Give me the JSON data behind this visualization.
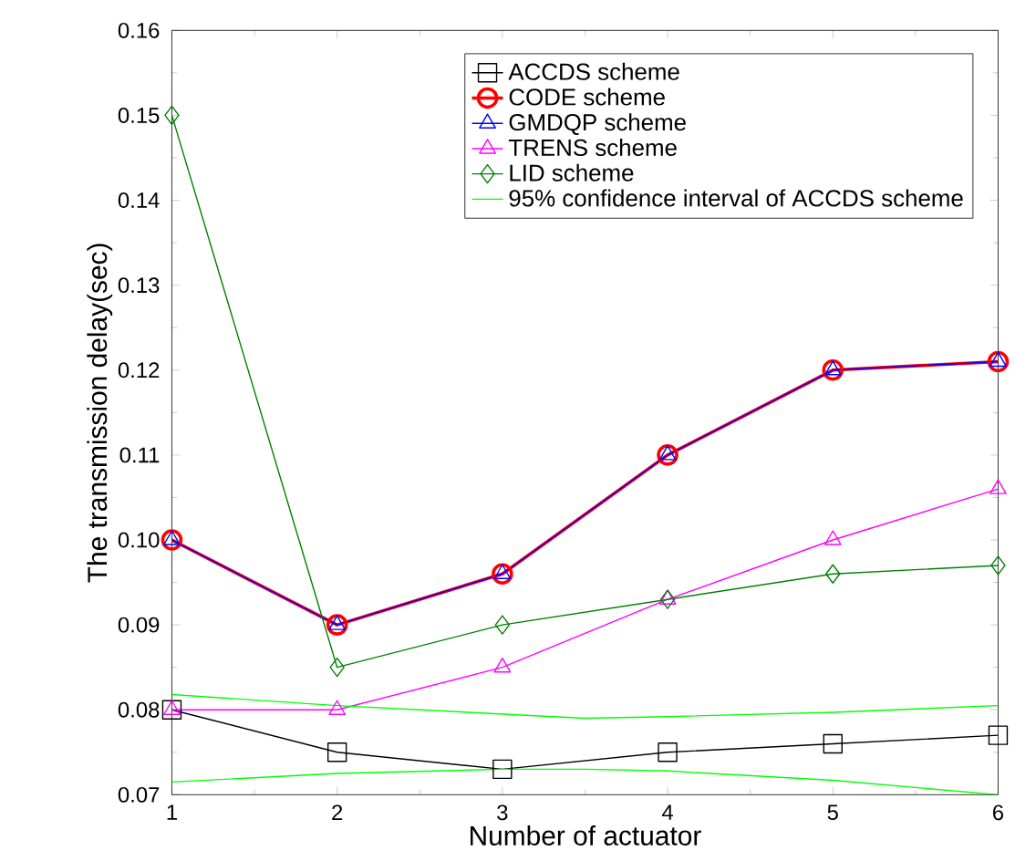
{
  "chart_data": {
    "type": "line",
    "xlabel": "Number of actuator",
    "ylabel": "The transmission delay(sec)",
    "x": [
      1,
      2,
      3,
      4,
      5,
      6
    ],
    "series": [
      {
        "name": "ACCDS scheme",
        "color": "#000000",
        "marker": "square",
        "values": [
          0.08,
          0.075,
          0.073,
          0.075,
          0.076,
          0.077
        ]
      },
      {
        "name": "CODE scheme",
        "color": "#ff0000",
        "marker": "circle",
        "values": [
          0.1,
          0.09,
          0.096,
          0.11,
          0.12,
          0.121
        ]
      },
      {
        "name": "GMDQP scheme",
        "color": "#0000ff",
        "marker": "triangle",
        "values": [
          0.1,
          0.09,
          0.096,
          0.11,
          0.12,
          0.121
        ]
      },
      {
        "name": "TRENS scheme",
        "color": "#ff00ff",
        "marker": "triangle",
        "values": [
          0.08,
          0.08,
          0.085,
          0.093,
          0.1,
          0.106
        ]
      },
      {
        "name": "LID scheme",
        "color": "#008000",
        "marker": "diamond",
        "values": [
          0.15,
          0.085,
          0.09,
          0.093,
          0.096,
          0.097
        ]
      },
      {
        "name": "95% confidence interval of ACCDS scheme",
        "color": "#00ff00",
        "marker": "none",
        "x": [
          1,
          2,
          3,
          3.5,
          4,
          5,
          6
        ],
        "values": [
          0.0818,
          0.0805,
          0.0795,
          0.079,
          0.0792,
          0.0797,
          0.0805
        ]
      },
      {
        "color": "#00ff00",
        "marker": "none",
        "x": [
          1,
          2,
          3,
          3.5,
          4,
          5,
          6
        ],
        "values": [
          0.0715,
          0.0725,
          0.073,
          0.073,
          0.0728,
          0.0717,
          0.07
        ]
      }
    ],
    "xlim": [
      1,
      6
    ],
    "xticks": [
      1,
      2,
      3,
      4,
      5,
      6
    ],
    "ylim": [
      0.07,
      0.16
    ],
    "yticks": [
      {
        "value": 0.07,
        "label": "0.07"
      },
      {
        "value": 0.08,
        "label": "0.08"
      },
      {
        "value": 0.09,
        "label": "0.09"
      },
      {
        "value": 0.1,
        "label": "0.10"
      },
      {
        "value": 0.11,
        "label": "0.11"
      },
      {
        "value": 0.12,
        "label": "0.12"
      },
      {
        "value": 0.13,
        "label": "0.13"
      },
      {
        "value": 0.14,
        "label": "0.14"
      },
      {
        "value": 0.15,
        "label": "0.15"
      },
      {
        "value": 0.16,
        "label": "0.16"
      }
    ],
    "legend": "top right",
    "grid": false
  }
}
